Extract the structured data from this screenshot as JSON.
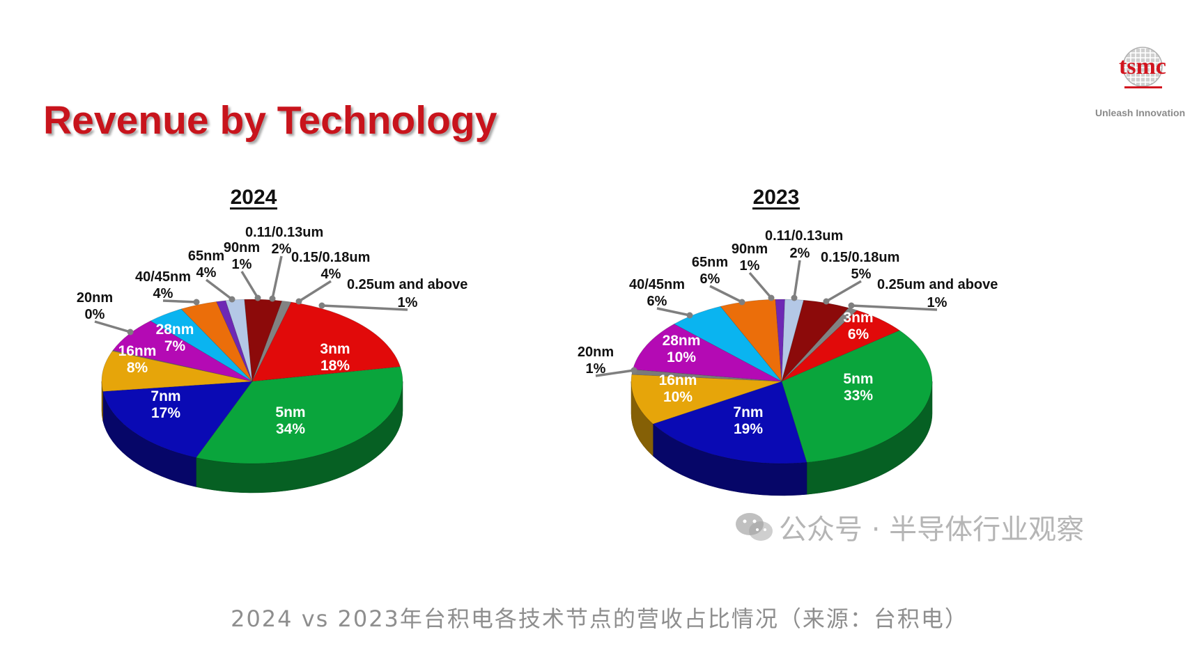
{
  "slide": {
    "title": "Revenue by Technology",
    "logo_text": "tsmc",
    "logo_tagline": "Unleash Innovation",
    "watermark": "公众号 · 半导体行业观察",
    "caption": "2024 vs 2023年台积电各技术节点的营收占比情况（来源：台积电）"
  },
  "chart_data": [
    {
      "type": "pie",
      "title": "2024",
      "slices": [
        {
          "label": "3nm",
          "value": 18,
          "value_text": "18%",
          "color": "#e10a0a"
        },
        {
          "label": "5nm",
          "value": 34,
          "value_text": "34%",
          "color": "#0aa53c"
        },
        {
          "label": "7nm",
          "value": 17,
          "value_text": "17%",
          "color": "#0a0ab4"
        },
        {
          "label": "16nm",
          "value": 8,
          "value_text": "8%",
          "color": "#e6a50a"
        },
        {
          "label": "20nm",
          "value": 0,
          "value_text": "0%",
          "color": "#7a7a7a"
        },
        {
          "label": "28nm",
          "value": 7,
          "value_text": "7%",
          "color": "#b40ab4"
        },
        {
          "label": "40/45nm",
          "value": 4,
          "value_text": "4%",
          "color": "#0ab4f0"
        },
        {
          "label": "65nm",
          "value": 4,
          "value_text": "4%",
          "color": "#eb6e0a"
        },
        {
          "label": "90nm",
          "value": 1,
          "value_text": "1%",
          "color": "#6e28b4"
        },
        {
          "label": "0.11/0.13um",
          "value": 2,
          "value_text": "2%",
          "color": "#b4c8e6"
        },
        {
          "label": "0.15/0.18um",
          "value": 4,
          "value_text": "4%",
          "color": "#8c0a0a"
        },
        {
          "label": "0.25um and above",
          "value": 1,
          "value_text": "1%",
          "color": "#828282"
        }
      ]
    },
    {
      "type": "pie",
      "title": "2023",
      "slices": [
        {
          "label": "3nm",
          "value": 6,
          "value_text": "6%",
          "color": "#e10a0a"
        },
        {
          "label": "5nm",
          "value": 33,
          "value_text": "33%",
          "color": "#0aa53c"
        },
        {
          "label": "7nm",
          "value": 19,
          "value_text": "19%",
          "color": "#0a0ab4"
        },
        {
          "label": "16nm",
          "value": 10,
          "value_text": "10%",
          "color": "#e6a50a"
        },
        {
          "label": "20nm",
          "value": 1,
          "value_text": "1%",
          "color": "#7a7a7a"
        },
        {
          "label": "28nm",
          "value": 10,
          "value_text": "10%",
          "color": "#b40ab4"
        },
        {
          "label": "40/45nm",
          "value": 6,
          "value_text": "6%",
          "color": "#0ab4f0"
        },
        {
          "label": "65nm",
          "value": 6,
          "value_text": "6%",
          "color": "#eb6e0a"
        },
        {
          "label": "90nm",
          "value": 1,
          "value_text": "1%",
          "color": "#6e28b4"
        },
        {
          "label": "0.11/0.13um",
          "value": 2,
          "value_text": "2%",
          "color": "#b4c8e6"
        },
        {
          "label": "0.15/0.18um",
          "value": 5,
          "value_text": "5%",
          "color": "#8c0a0a"
        },
        {
          "label": "0.25um and above",
          "value": 1,
          "value_text": "1%",
          "color": "#828282"
        }
      ]
    }
  ]
}
